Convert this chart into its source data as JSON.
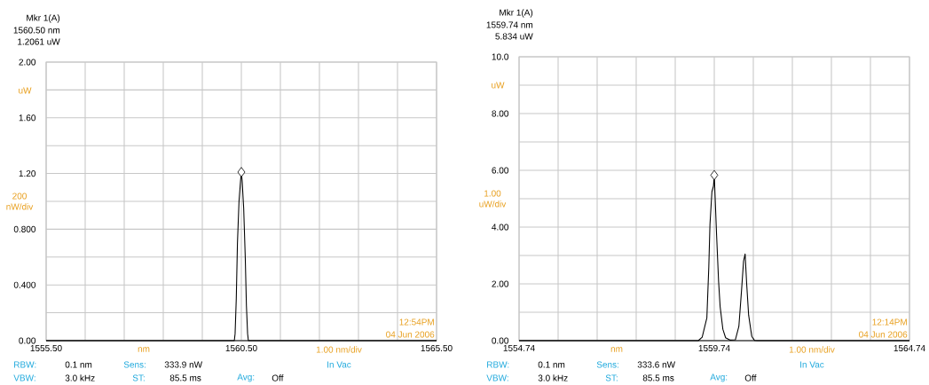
{
  "chart_data": [
    {
      "type": "line",
      "xlabel": "nm",
      "ylabel": "uW",
      "grid": true,
      "line_style": "solid",
      "marker": "none",
      "annotations": [
        "Mkr 1(A)",
        "1560.50 nm",
        "1.2061 uW",
        "200 nW/div",
        "1.00 nm/div",
        "12:54PM",
        "04 Jun 2006",
        "RBW:",
        "0.1 nm",
        "Sens:",
        "333.9 nW",
        "In Vac",
        "VBW:",
        "3.0 kHz",
        "ST:",
        "85.5 ms",
        "Avg:",
        "Off"
      ],
      "xlim": [
        1555.5,
        1565.5
      ],
      "ylim": [
        0,
        2
      ],
      "xticks": [
        {
          "value": 1555.5,
          "label": "1555.50"
        },
        {
          "value": 1556.5,
          "label": null
        },
        {
          "value": 1557.5,
          "label": null
        },
        {
          "value": 1558.5,
          "label": null
        },
        {
          "value": 1559.5,
          "label": null
        },
        {
          "value": 1560.5,
          "label": "1560.50"
        },
        {
          "value": 1561.5,
          "label": null
        },
        {
          "value": 1562.5,
          "label": null
        },
        {
          "value": 1563.5,
          "label": null
        },
        {
          "value": 1564.5,
          "label": null
        },
        {
          "value": 1565.5,
          "label": "1565.50"
        }
      ],
      "yticks": [
        {
          "value": 0,
          "label": "0.00"
        },
        {
          "value": 0.2,
          "label": null
        },
        {
          "value": 0.4,
          "label": "0.400"
        },
        {
          "value": 0.6,
          "label": null
        },
        {
          "value": 0.8,
          "label": "0.800"
        },
        {
          "value": 1.0,
          "label": null
        },
        {
          "value": 1.2,
          "label": "1.20"
        },
        {
          "value": 1.4,
          "label": null
        },
        {
          "value": 1.6,
          "label": "1.60"
        },
        {
          "value": 1.8,
          "label": null
        },
        {
          "value": 2.0,
          "label": "2.00"
        }
      ],
      "series": [
        {
          "color": "#000000",
          "x": [
            1555.5,
            1560.32,
            1560.34,
            1560.37,
            1560.4,
            1560.44,
            1560.48,
            1560.5,
            1560.52,
            1560.56,
            1560.6,
            1560.63,
            1560.66,
            1560.68,
            1565.5
          ],
          "values": [
            0,
            0,
            0.05,
            0.3,
            0.7,
            1.0,
            1.15,
            1.21,
            1.15,
            0.95,
            0.6,
            0.25,
            0.05,
            0,
            0
          ]
        },
        {
          "type": "scatter",
          "marker": "diamond",
          "color": "#000000",
          "x": [
            1560.5
          ],
          "values": [
            1.21
          ]
        }
      ]
    },
    {
      "type": "line",
      "xlabel": "nm",
      "ylabel": "uW",
      "grid": true,
      "line_style": "solid",
      "marker": "none",
      "annotations": [
        "Mkr 1(A)",
        "1559.74 nm",
        "5.834 uW",
        "1.00 uW/div",
        "1.00 nm/div",
        "12:14PM",
        "04 Jun 2006",
        "RBW:",
        "0.1 nm",
        "Sens:",
        "333.6 nW",
        "In Vac",
        "VBW:",
        "3.0 kHz",
        "ST:",
        "85.5 ms",
        "Avg:",
        "Off"
      ],
      "xlim": [
        1554.74,
        1564.74
      ],
      "ylim": [
        0,
        10
      ],
      "xticks": [
        {
          "value": 1554.74,
          "label": "1554.74"
        },
        {
          "value": 1555.74,
          "label": null
        },
        {
          "value": 1556.74,
          "label": null
        },
        {
          "value": 1557.74,
          "label": null
        },
        {
          "value": 1558.74,
          "label": null
        },
        {
          "value": 1559.74,
          "label": "1559.74"
        },
        {
          "value": 1560.74,
          "label": null
        },
        {
          "value": 1561.74,
          "label": null
        },
        {
          "value": 1562.74,
          "label": null
        },
        {
          "value": 1563.74,
          "label": null
        },
        {
          "value": 1564.74,
          "label": "1564.74"
        }
      ],
      "yticks": [
        {
          "value": 0,
          "label": "0.00"
        },
        {
          "value": 1,
          "label": null
        },
        {
          "value": 2,
          "label": "2.00"
        },
        {
          "value": 3,
          "label": null
        },
        {
          "value": 4,
          "label": "4.00"
        },
        {
          "value": 5,
          "label": null
        },
        {
          "value": 6,
          "label": "6.00"
        },
        {
          "value": 7,
          "label": null
        },
        {
          "value": 8,
          "label": "8.00"
        },
        {
          "value": 9,
          "label": null
        },
        {
          "value": 10,
          "label": "10.0"
        }
      ],
      "series": [
        {
          "color": "#000000",
          "x": [
            1554.74,
            1559.33,
            1559.43,
            1559.55,
            1559.6,
            1559.63,
            1559.68,
            1559.72,
            1559.74,
            1559.8,
            1559.85,
            1559.89,
            1559.96,
            1560.03,
            1560.14,
            1560.28,
            1560.37,
            1560.44,
            1560.49,
            1560.53,
            1560.57,
            1560.62,
            1560.7,
            1560.77,
            1560.84,
            1564.74
          ],
          "values": [
            0,
            0,
            0.12,
            0.8,
            2.6,
            4.1,
            5.25,
            5.45,
            5.83,
            3.7,
            2.1,
            1.2,
            0.4,
            0.1,
            0.02,
            0.03,
            0.5,
            1.8,
            2.8,
            3.05,
            2.0,
            0.9,
            0.15,
            0.01,
            0,
            0
          ]
        },
        {
          "type": "scatter",
          "marker": "diamond",
          "color": "#000000",
          "x": [
            1559.74
          ],
          "values": [
            5.83
          ]
        }
      ]
    }
  ]
}
